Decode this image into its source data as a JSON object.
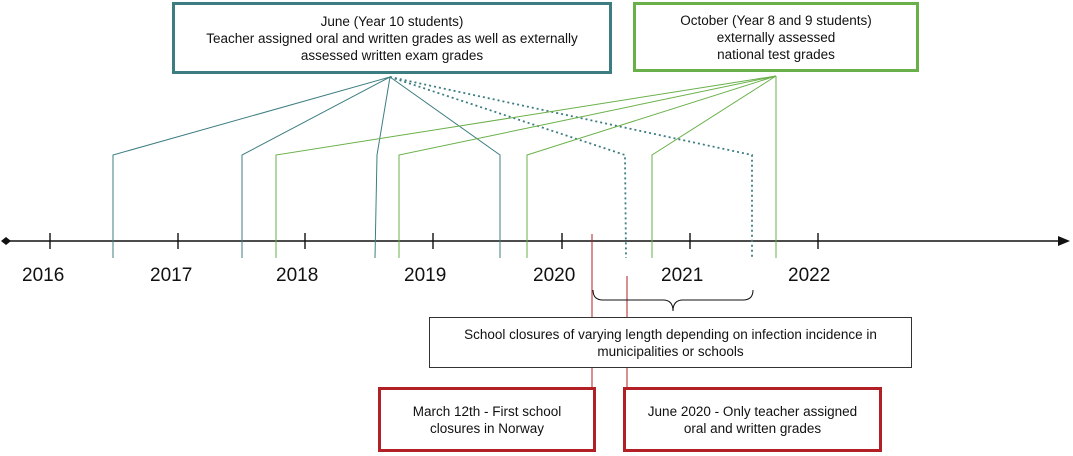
{
  "timeline": {
    "years": [
      "2016",
      "2017",
      "2018",
      "2019",
      "2020",
      "2021",
      "2022"
    ]
  },
  "boxes": {
    "june": {
      "lines": [
        "June (Year 10 students)",
        "Teacher assigned oral and written grades as well as externally",
        "assessed written exam grades"
      ]
    },
    "october": {
      "lines": [
        "October (Year 8 and 9 students)",
        "externally assessed",
        "national test grades"
      ]
    },
    "closures": {
      "lines": [
        "School closures of varying length depending on infection incidence in",
        "municipalities or schools"
      ]
    },
    "march": {
      "lines": [
        "March 12th - First school",
        "closures in Norway"
      ]
    },
    "june2020": {
      "lines": [
        "June 2020 - Only teacher assigned",
        "oral and written grades"
      ]
    }
  },
  "colors": {
    "june": "#3d7d82",
    "october": "#6ab04a",
    "closure": "#b21f24",
    "axis": "#111111"
  }
}
